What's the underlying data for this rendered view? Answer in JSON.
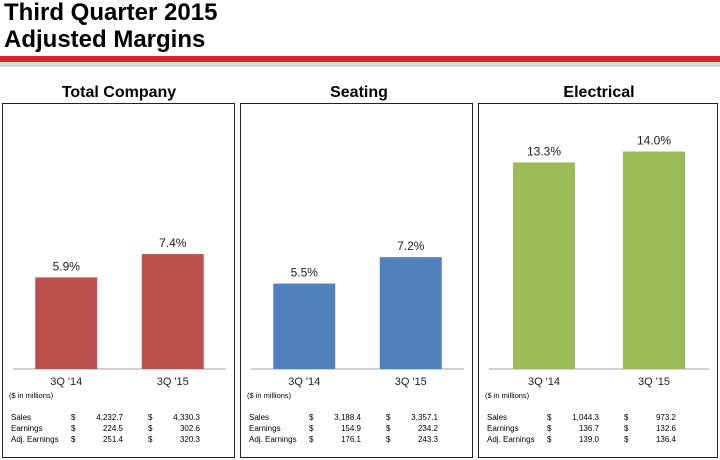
{
  "header": {
    "title_line1": "Third Quarter 2015",
    "title_line2": "Adjusted Margins"
  },
  "units_note": "($ in millions)",
  "row_labels": [
    "Sales",
    "Earnings",
    "Adj. Earnings"
  ],
  "currency_symbol": "$",
  "chart_data": [
    {
      "type": "bar",
      "title": "Total Company",
      "categories": [
        "3Q '14",
        "3Q '15"
      ],
      "values": [
        5.9,
        7.4
      ],
      "data_labels": [
        "5.9%",
        "7.4%"
      ],
      "color": "#c0504d",
      "ylim": [
        0,
        15
      ],
      "table": [
        {
          "label": "Sales",
          "values": [
            "4,232.7",
            "4,330.3"
          ]
        },
        {
          "label": "Earnings",
          "values": [
            "224.5",
            "302.6"
          ]
        },
        {
          "label": "Adj. Earnings",
          "values": [
            "251.4",
            "320.3"
          ]
        }
      ]
    },
    {
      "type": "bar",
      "title": "Seating",
      "categories": [
        "3Q '14",
        "3Q '15"
      ],
      "values": [
        5.5,
        7.2
      ],
      "data_labels": [
        "5.5%",
        "7.2%"
      ],
      "color": "#4f81bd",
      "ylim": [
        0,
        15
      ],
      "table": [
        {
          "label": "Sales",
          "values": [
            "3,188.4",
            "3,357.1"
          ]
        },
        {
          "label": "Earnings",
          "values": [
            "154.9",
            "234.2"
          ]
        },
        {
          "label": "Adj. Earnings",
          "values": [
            "176.1",
            "243.3"
          ]
        }
      ]
    },
    {
      "type": "bar",
      "title": "Electrical",
      "categories": [
        "3Q '14",
        "3Q '15"
      ],
      "values": [
        13.3,
        14.0
      ],
      "data_labels": [
        "13.3%",
        "14.0%"
      ],
      "color": "#9bbb59",
      "ylim": [
        0,
        15
      ],
      "table": [
        {
          "label": "Sales",
          "values": [
            "1,044.3",
            "973.2"
          ]
        },
        {
          "label": "Earnings",
          "values": [
            "136.7",
            "132.6"
          ]
        },
        {
          "label": "Adj. Earnings",
          "values": [
            "139.0",
            "136.4"
          ]
        }
      ]
    }
  ]
}
